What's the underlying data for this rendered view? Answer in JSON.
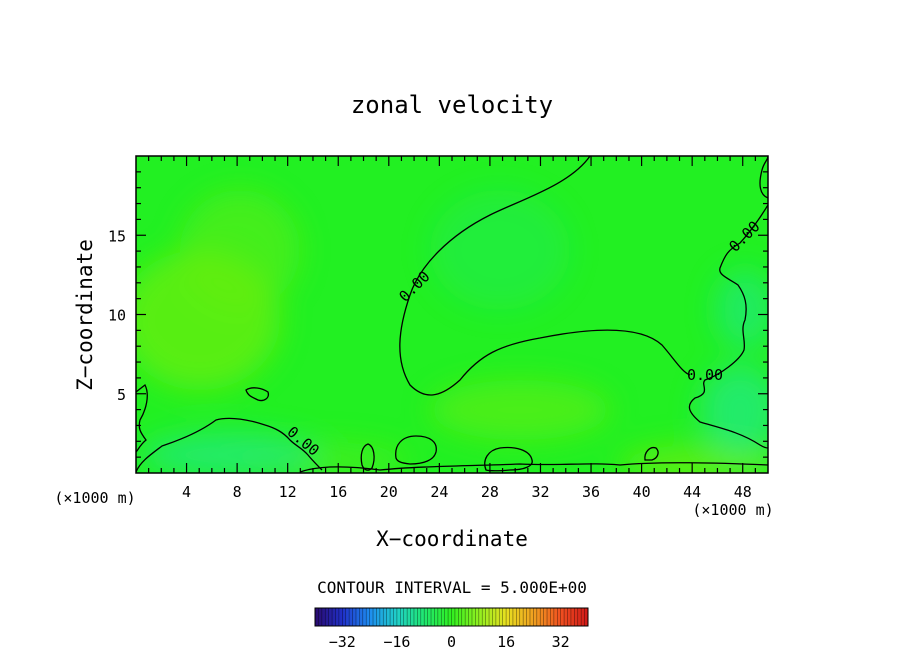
{
  "chart_data": {
    "type": "heatmap",
    "title": "zonal velocity",
    "xlabel": "X−coordinate",
    "ylabel": "Z−coordinate",
    "x_unit_label": "(×1000 m)",
    "x_unit_label_right": "(×1000 m)",
    "xlim": [
      0,
      50
    ],
    "ylim": [
      0,
      20
    ],
    "x_ticks": [
      4,
      8,
      12,
      16,
      20,
      24,
      28,
      32,
      36,
      40,
      44,
      48
    ],
    "y_ticks": [
      5,
      10,
      15
    ],
    "contour_interval_label": "CONTOUR INTERVAL = 5.000E+00",
    "contour_label": "0.00",
    "colorbar": {
      "range": [
        -40,
        40
      ],
      "ticks": [
        -32,
        -16,
        0,
        16,
        32
      ],
      "tick_labels": [
        "−32",
        "−16",
        "0",
        "16",
        "32"
      ],
      "colors": [
        "#2a0a6e",
        "#2030c8",
        "#1e8cf0",
        "#20d0c8",
        "#20e870",
        "#30f020",
        "#90f020",
        "#e8e020",
        "#f0a020",
        "#f05020",
        "#d01818"
      ]
    },
    "field_colors": {
      "base": "#22f022",
      "positive": "#66ee11",
      "negative": "#22e888"
    }
  }
}
